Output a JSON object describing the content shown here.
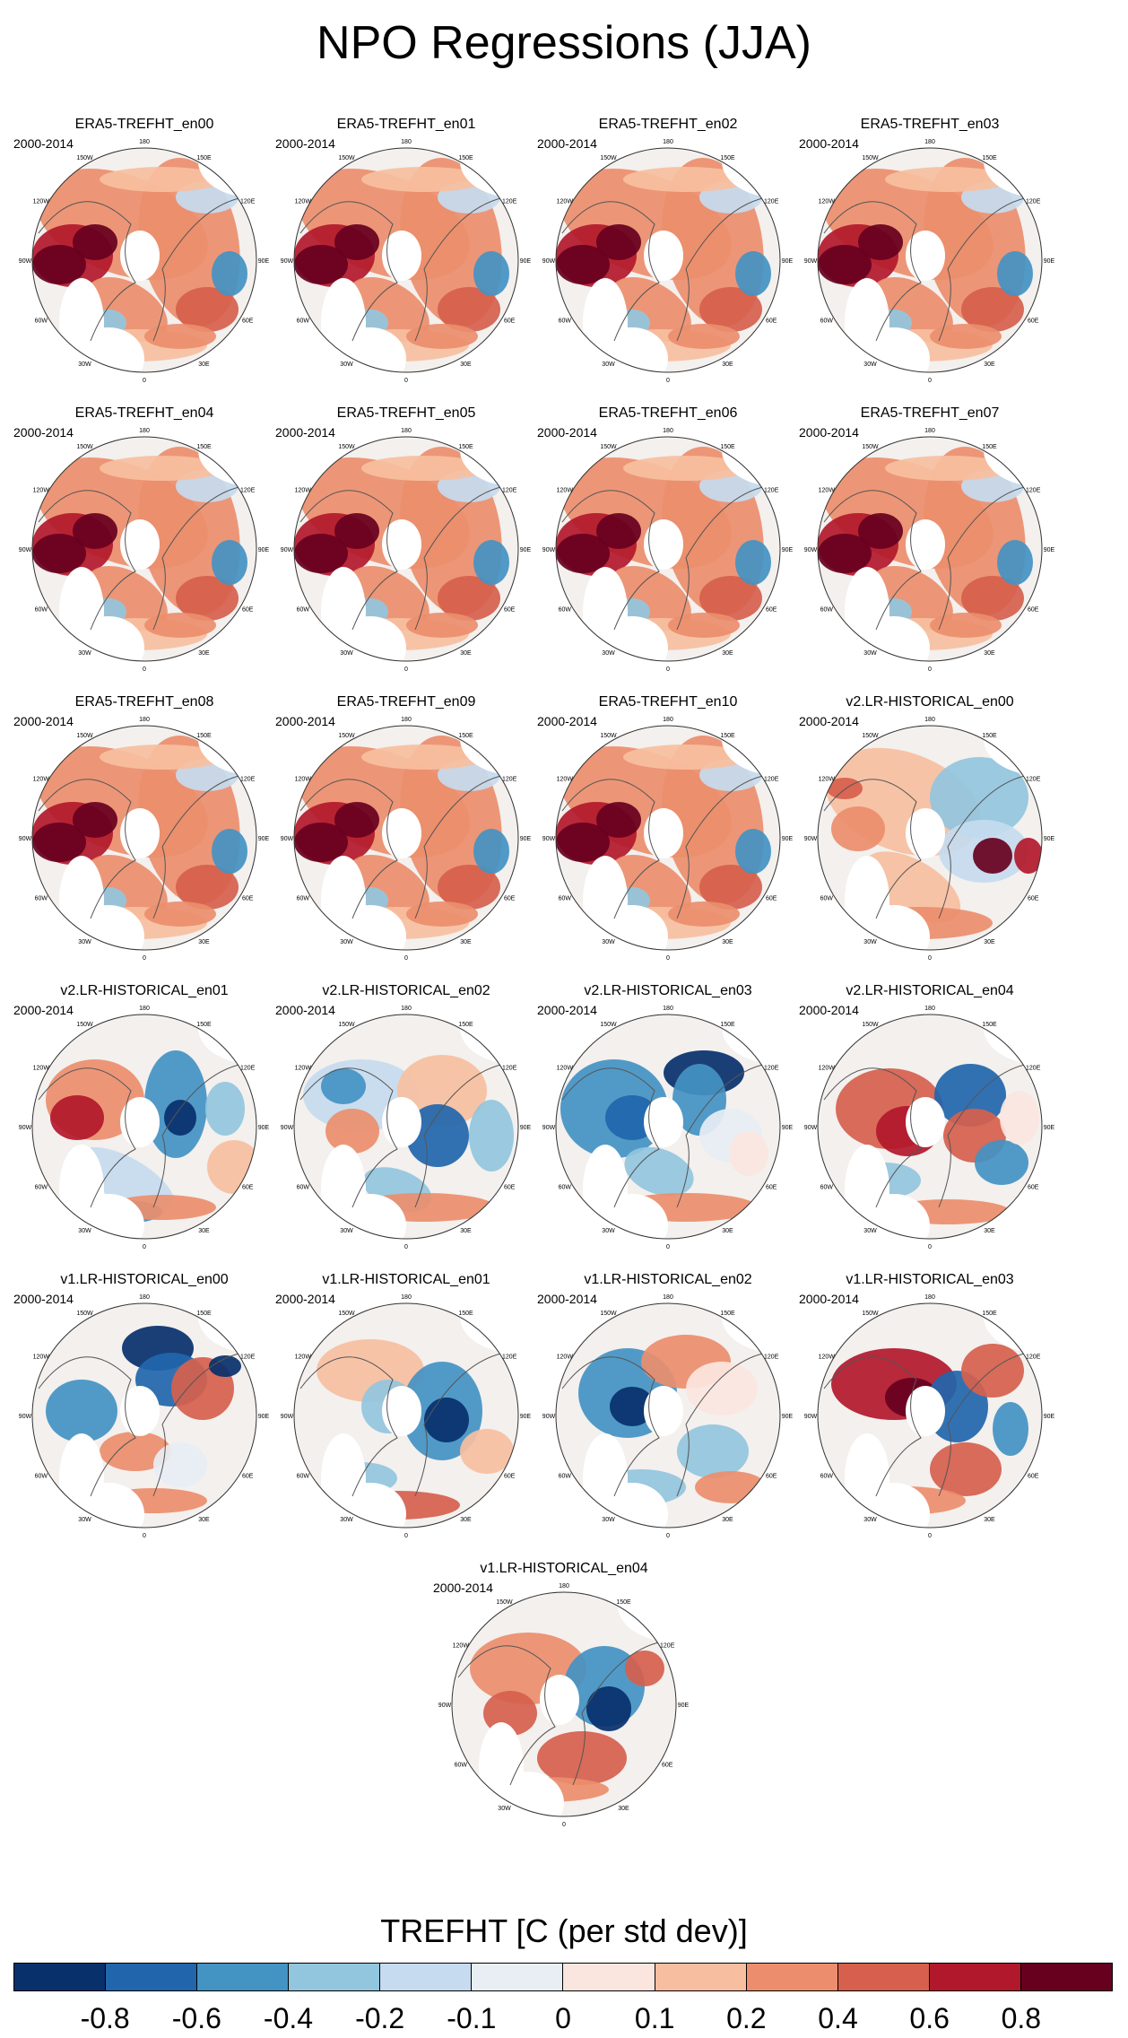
{
  "title": "NPO Regressions (JJA)",
  "period": "2000-2014",
  "lon_labels": [
    "180",
    "150E",
    "120E",
    "90E",
    "60E",
    "30E",
    "0",
    "30W",
    "60W",
    "90W",
    "120W",
    "150W"
  ],
  "panels": [
    {
      "title": "ERA5-TREFHT_en00",
      "pattern": "era5"
    },
    {
      "title": "ERA5-TREFHT_en01",
      "pattern": "era5"
    },
    {
      "title": "ERA5-TREFHT_en02",
      "pattern": "era5"
    },
    {
      "title": "ERA5-TREFHT_en03",
      "pattern": "era5"
    },
    {
      "title": "ERA5-TREFHT_en04",
      "pattern": "era5"
    },
    {
      "title": "ERA5-TREFHT_en05",
      "pattern": "era5"
    },
    {
      "title": "ERA5-TREFHT_en06",
      "pattern": "era5"
    },
    {
      "title": "ERA5-TREFHT_en07",
      "pattern": "era5"
    },
    {
      "title": "ERA5-TREFHT_en08",
      "pattern": "era5"
    },
    {
      "title": "ERA5-TREFHT_en09",
      "pattern": "era5"
    },
    {
      "title": "ERA5-TREFHT_en10",
      "pattern": "era5"
    },
    {
      "title": "v2.LR-HISTORICAL_en00",
      "pattern": "v2a"
    },
    {
      "title": "v2.LR-HISTORICAL_en01",
      "pattern": "v2b"
    },
    {
      "title": "v2.LR-HISTORICAL_en02",
      "pattern": "v2c"
    },
    {
      "title": "v2.LR-HISTORICAL_en03",
      "pattern": "v2d"
    },
    {
      "title": "v2.LR-HISTORICAL_en04",
      "pattern": "v2e"
    },
    {
      "title": "v1.LR-HISTORICAL_en00",
      "pattern": "v1a"
    },
    {
      "title": "v1.LR-HISTORICAL_en01",
      "pattern": "v1b"
    },
    {
      "title": "v1.LR-HISTORICAL_en02",
      "pattern": "v1c"
    },
    {
      "title": "v1.LR-HISTORICAL_en03",
      "pattern": "v1d"
    },
    {
      "title": "v1.LR-HISTORICAL_en04",
      "pattern": "v1e"
    }
  ],
  "colorbar": {
    "title": "TREFHT [C (per std dev)]",
    "colors": [
      "#08306b",
      "#2166ac",
      "#4393c3",
      "#92c5de",
      "#c6dbef",
      "#e8eef4",
      "#fbe6df",
      "#f7bfa0",
      "#ec8e6d",
      "#d6604d",
      "#b2182b",
      "#67001f"
    ],
    "labels": [
      "-0.8",
      "-0.6",
      "-0.4",
      "-0.2",
      "-0.1",
      "0",
      "0.1",
      "0.2",
      "0.4",
      "0.6",
      "0.8"
    ]
  }
}
